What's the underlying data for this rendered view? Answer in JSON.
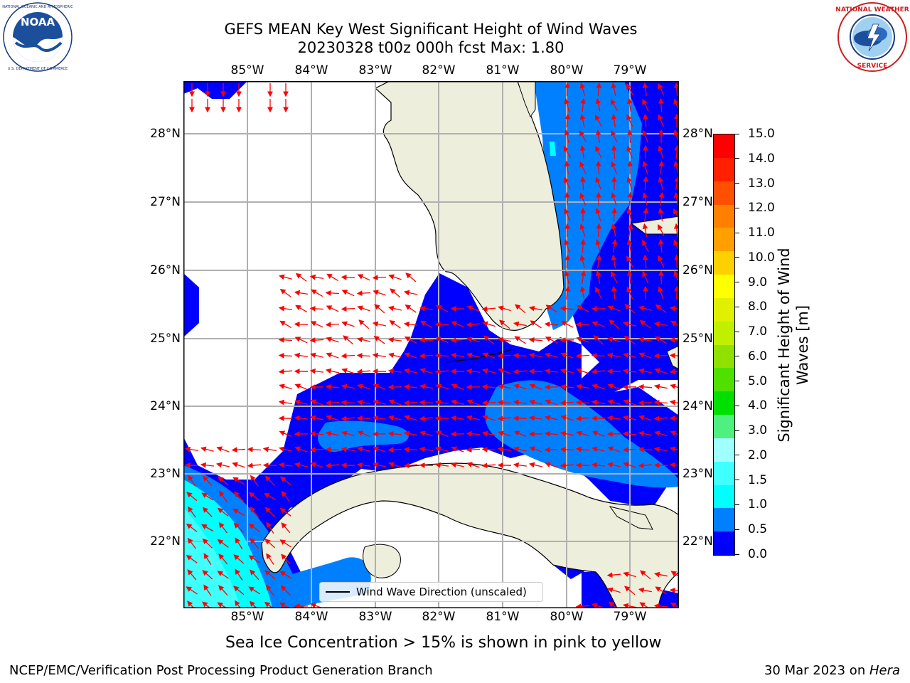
{
  "title": {
    "line1": "GEFS MEAN Key West Significant Height of Wind Waves",
    "line2": "20230328 t00z 000h fcst   Max: 1.80"
  },
  "logos": {
    "left": {
      "name": "NOAA",
      "ring_text": "NATIONAL OCEANIC AND ATMOSPHERIC ADMINISTRATION · U.S. DEPARTMENT OF COMMERCE"
    },
    "right": {
      "name": "NATIONAL WEATHER SERVICE"
    }
  },
  "map": {
    "lon_ticks_top": [
      "85°W",
      "84°W",
      "83°W",
      "82°W",
      "81°W",
      "80°W",
      "79°W"
    ],
    "lon_ticks_bottom": [
      "85°W",
      "84°W",
      "83°W",
      "82°W",
      "81°W",
      "80°W",
      "79°W"
    ],
    "lat_ticks_left": [
      "28°N",
      "27°N",
      "26°N",
      "25°N",
      "24°N",
      "23°N",
      "22°N"
    ],
    "lat_ticks_right": [
      "28°N",
      "27°N",
      "26°N",
      "25°N",
      "24°N",
      "23°N",
      "22°N"
    ],
    "lon_range": [
      -86.0,
      -78.3
    ],
    "lat_range": [
      21.0,
      28.75
    ],
    "land_color": "#eeeedd",
    "grid": true,
    "legend_label": "Wind Wave Direction (unscaled)",
    "arrow_color": "#ff0000"
  },
  "colorbar": {
    "label": "Significant Height of Wind Waves [m]",
    "ticks": [
      "0.0",
      "0.5",
      "1.0",
      "1.5",
      "2.0",
      "3.0",
      "4.0",
      "5.0",
      "6.0",
      "7.0",
      "8.0",
      "9.0",
      "10.0",
      "11.0",
      "12.0",
      "13.0",
      "14.0",
      "15.0"
    ],
    "colors": [
      "#0000ff",
      "#0080ff",
      "#00ffff",
      "#40ffff",
      "#a0ffff",
      "#50f080",
      "#00e000",
      "#50e000",
      "#90e000",
      "#c0f000",
      "#e0f000",
      "#ffff00",
      "#ffd000",
      "#ffa000",
      "#ff8000",
      "#ff5000",
      "#ff2000",
      "#ff0000"
    ]
  },
  "note": "Sea Ice Concentration > 15% is shown in pink to yellow",
  "footer": {
    "left": "NCEP/EMC/Verification Post Processing Product Generation Branch",
    "date": "30 Mar 2023 on ",
    "machine": "Hera"
  }
}
